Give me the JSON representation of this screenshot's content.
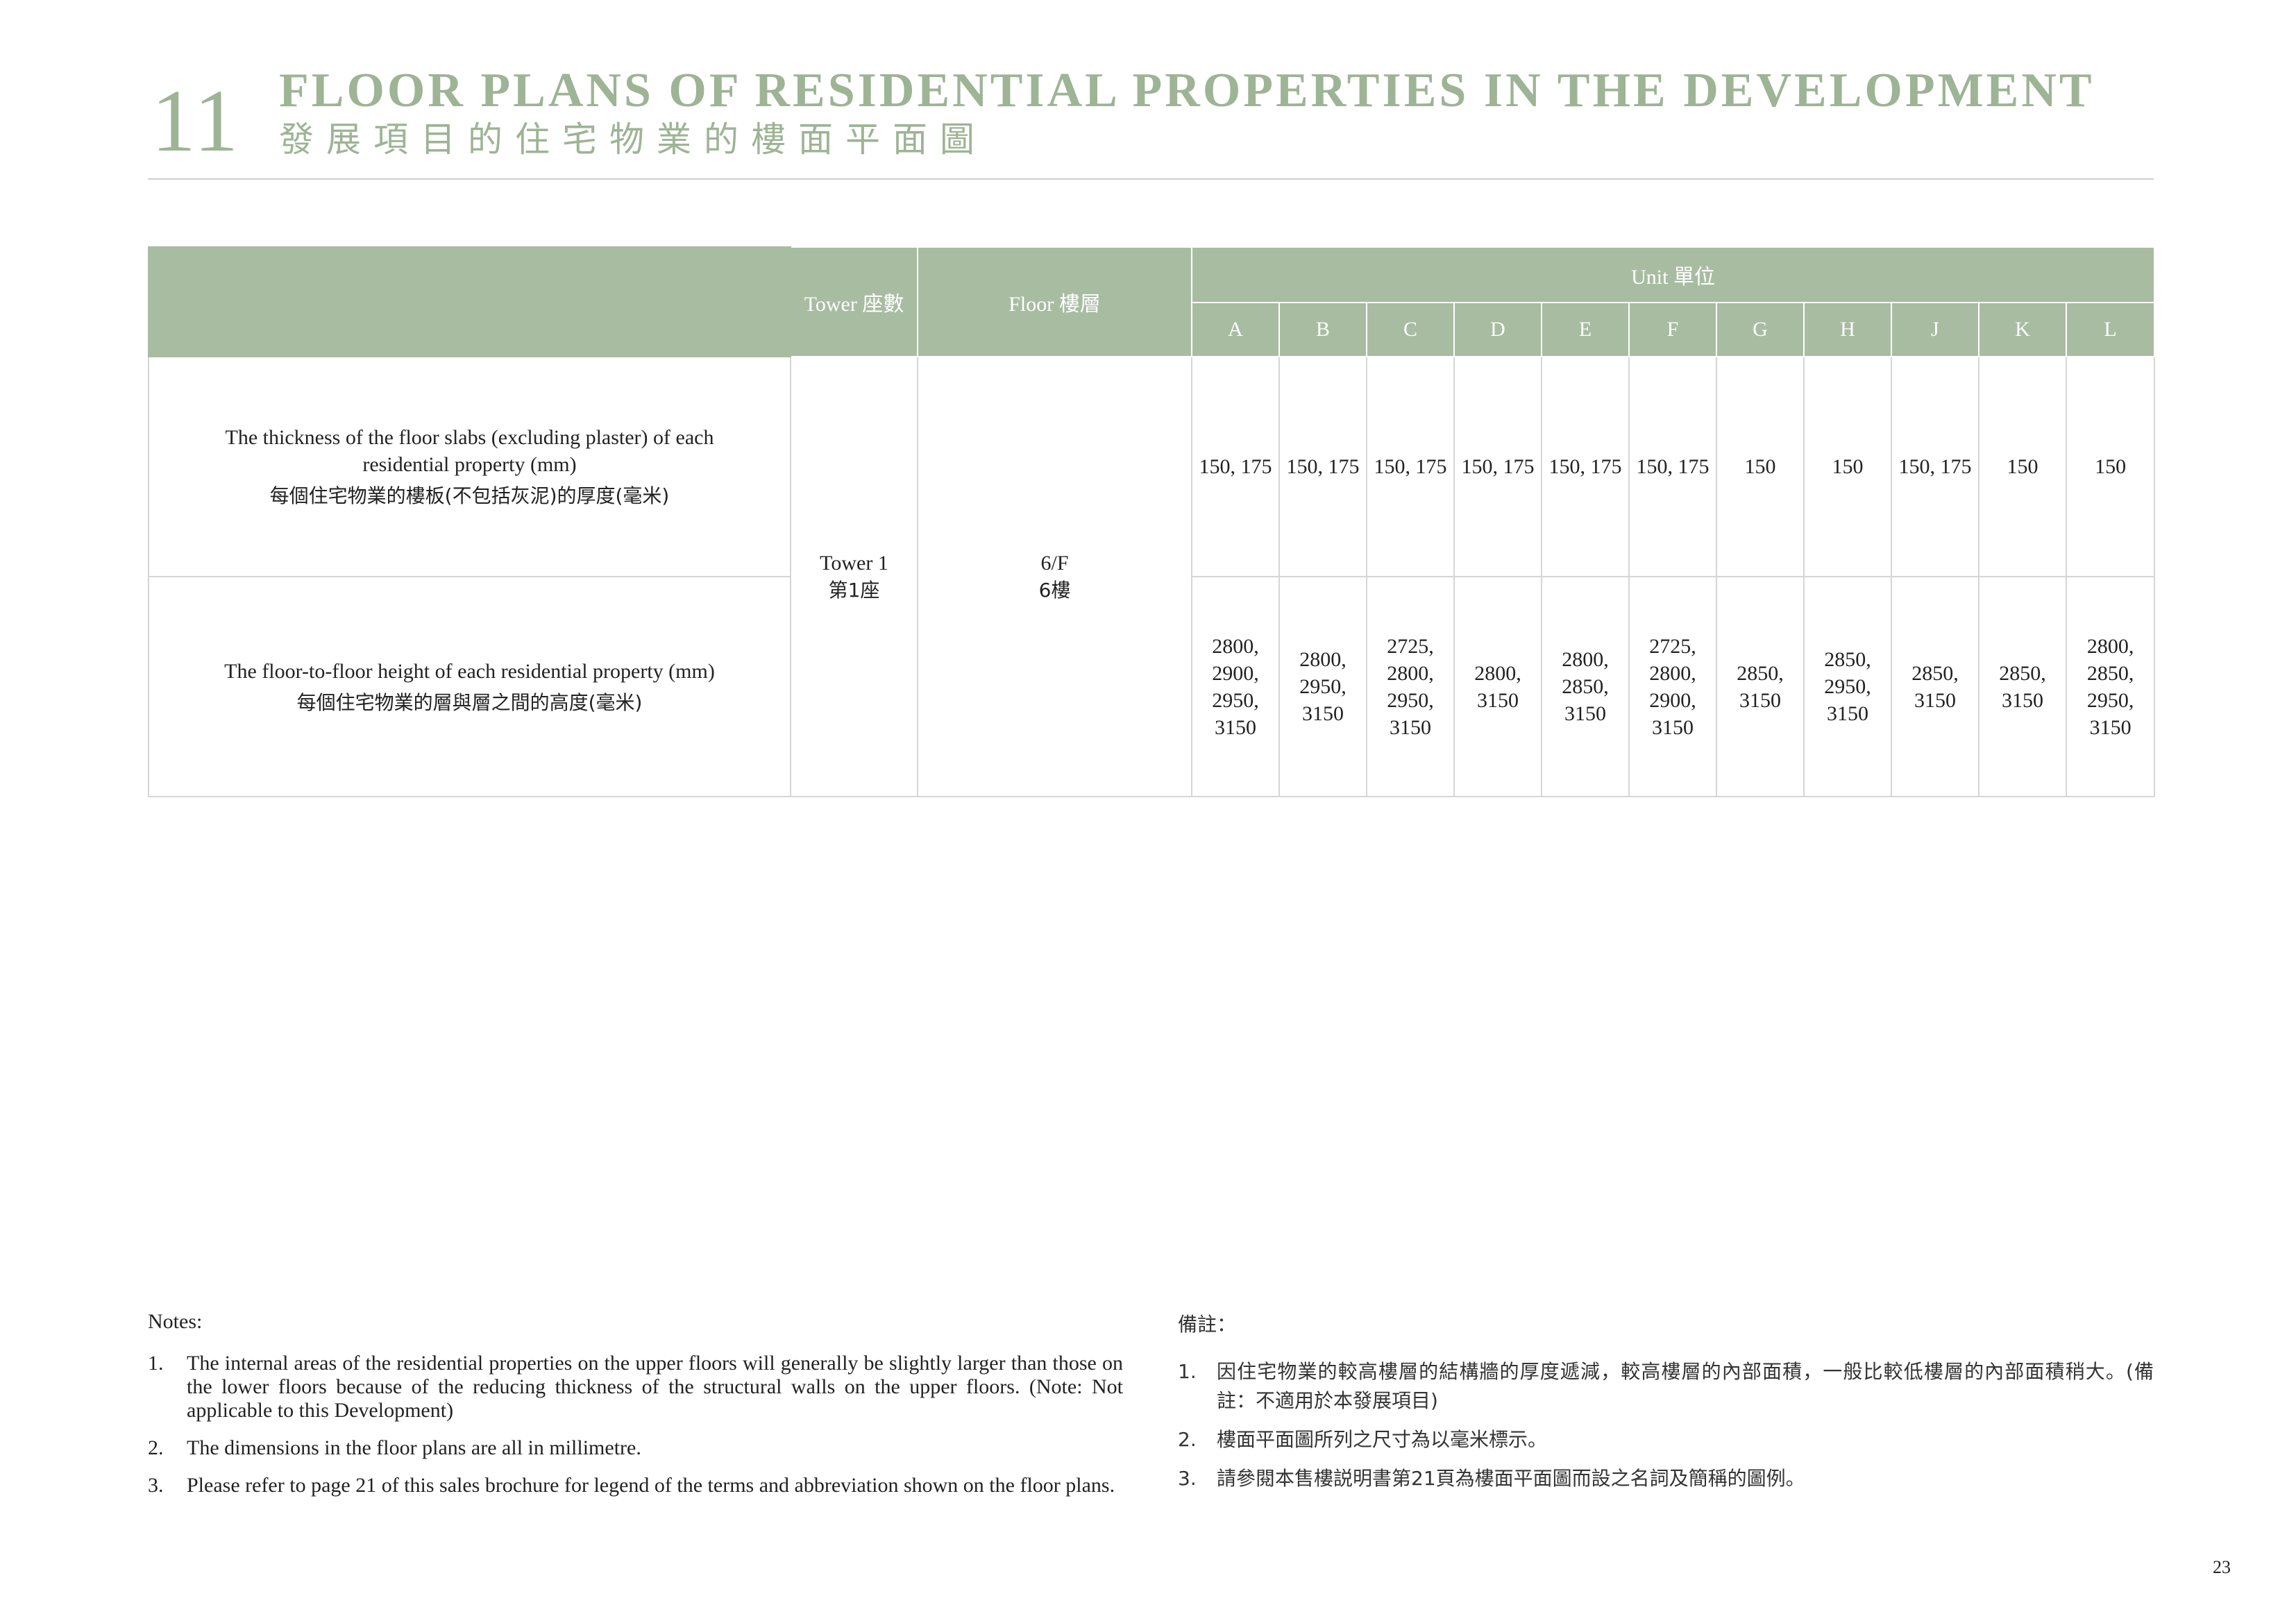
{
  "header": {
    "section_number": "11",
    "title_en": "FLOOR PLANS OF RESIDENTIAL PROPERTIES IN THE DEVELOPMENT",
    "title_zh": "發展項目的住宅物業的樓面平面圖"
  },
  "table": {
    "col_tower": "Tower 座數",
    "col_floor": "Floor 樓層",
    "col_unit": "Unit 單位",
    "units": [
      "A",
      "B",
      "C",
      "D",
      "E",
      "F",
      "G",
      "H",
      "J",
      "K",
      "L"
    ],
    "tower": {
      "en": "Tower 1",
      "zh": "第1座"
    },
    "floor": {
      "en": "6/F",
      "zh": "6樓"
    },
    "rows": [
      {
        "label_en": "The thickness of the floor slabs (excluding plaster) of each residential property (mm)",
        "label_zh": "每個住宅物業的樓板(不包括灰泥)的厚度(毫米)",
        "values": [
          [
            "150, 175"
          ],
          [
            "150, 175"
          ],
          [
            "150, 175"
          ],
          [
            "150, 175"
          ],
          [
            "150, 175"
          ],
          [
            "150, 175"
          ],
          [
            "150"
          ],
          [
            "150"
          ],
          [
            "150, 175"
          ],
          [
            "150"
          ],
          [
            "150"
          ]
        ]
      },
      {
        "label_en": "The floor-to-floor height of each residential property (mm)",
        "label_zh": "每個住宅物業的層與層之間的高度(毫米)",
        "values": [
          [
            "2800,",
            "2900,",
            "2950,",
            "3150"
          ],
          [
            "2800,",
            "2950,",
            "3150"
          ],
          [
            "2725,",
            "2800,",
            "2950,",
            "3150"
          ],
          [
            "2800,",
            "3150"
          ],
          [
            "2800,",
            "2850,",
            "3150"
          ],
          [
            "2725,",
            "2800,",
            "2900,",
            "3150"
          ],
          [
            "2850,",
            "3150"
          ],
          [
            "2850,",
            "2950,",
            "3150"
          ],
          [
            "2850,",
            "3150"
          ],
          [
            "2850,",
            "3150"
          ],
          [
            "2800,",
            "2850,",
            "2950,",
            "3150"
          ]
        ]
      }
    ]
  },
  "notes_en": {
    "heading": "Notes:",
    "items": [
      {
        "num": "1.",
        "text": "The internal areas of the residential properties on the upper floors will generally be slightly larger than those on the lower floors because of the reducing thickness of the structural walls on the upper floors. (Note: Not applicable to this Development)"
      },
      {
        "num": "2.",
        "text": "The dimensions in the floor plans are all in millimetre."
      },
      {
        "num": "3.",
        "text": "Please refer to page 21 of this sales brochure for legend of the terms and abbreviation shown on the floor plans."
      }
    ]
  },
  "notes_zh": {
    "heading": "備註：",
    "items": [
      {
        "num": "1.",
        "text": "因住宅物業的較高樓層的結構牆的厚度遞減，較高樓層的內部面積，一般比較低樓層的內部面積稍大。(備註：不適用於本發展項目)"
      },
      {
        "num": "2.",
        "text": "樓面平面圖所列之尺寸為以毫米標示。"
      },
      {
        "num": "3.",
        "text": "請參閱本售樓説明書第21頁為樓面平面圖而設之名詞及簡稱的圖例。"
      }
    ]
  },
  "page_number": "23",
  "colors": {
    "accent": "#9db495",
    "header_fill": "#a8bca2",
    "rule": "#cfcfcf"
  }
}
